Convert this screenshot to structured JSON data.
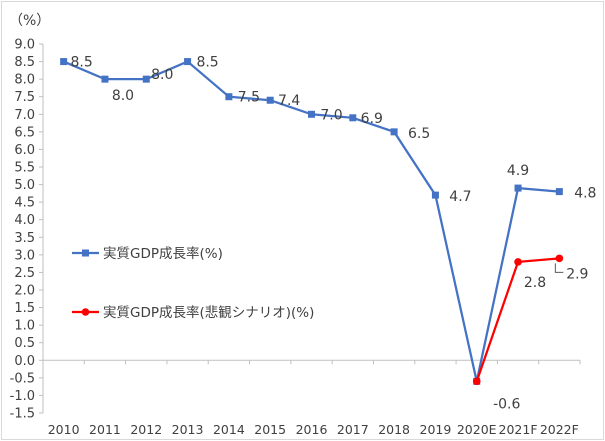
{
  "chart_data": {
    "type": "line",
    "title": "",
    "ylabel": "（%）",
    "xlabel": "",
    "ylim": [
      -1.5,
      9.0
    ],
    "ytick_step": 0.5,
    "y_ticks": [
      "9.0",
      "8.5",
      "8.0",
      "7.5",
      "7.0",
      "6.5",
      "6.0",
      "5.5",
      "5.0",
      "4.5",
      "4.0",
      "3.5",
      "3.0",
      "2.5",
      "2.0",
      "1.5",
      "1.0",
      "0.5",
      "0.0",
      "-0.5",
      "-1.0",
      "-1.5"
    ],
    "categories": [
      "2010",
      "2011",
      "2012",
      "2013",
      "2014",
      "2015",
      "2016",
      "2017",
      "2018",
      "2019",
      "2020E",
      "2021F",
      "2022F"
    ],
    "grid": false,
    "legend_position": "left-middle",
    "series": [
      {
        "name": "実質GDP成長率(%)",
        "color": "#4472c4",
        "marker": "square",
        "values": [
          8.5,
          8.0,
          8.0,
          8.5,
          7.5,
          7.4,
          7.0,
          6.9,
          6.5,
          4.7,
          -0.6,
          4.9,
          4.8
        ],
        "labels": [
          "8.5",
          "8.0",
          "8.0",
          "8.5",
          "7.5",
          "7.4",
          "7.0",
          "6.9",
          "6.5",
          "4.7",
          "",
          "4.9",
          "4.8"
        ]
      },
      {
        "name": "実質GDP成長率(悲観シナリオ)(%)",
        "color": "#ff0000",
        "marker": "circle",
        "values": [
          null,
          null,
          null,
          null,
          null,
          null,
          null,
          null,
          null,
          null,
          -0.6,
          2.8,
          2.9
        ],
        "labels": [
          "",
          "",
          "",
          "",
          "",
          "",
          "",
          "",
          "",
          "",
          "-0.6",
          "2.8",
          "2.9"
        ]
      }
    ]
  }
}
